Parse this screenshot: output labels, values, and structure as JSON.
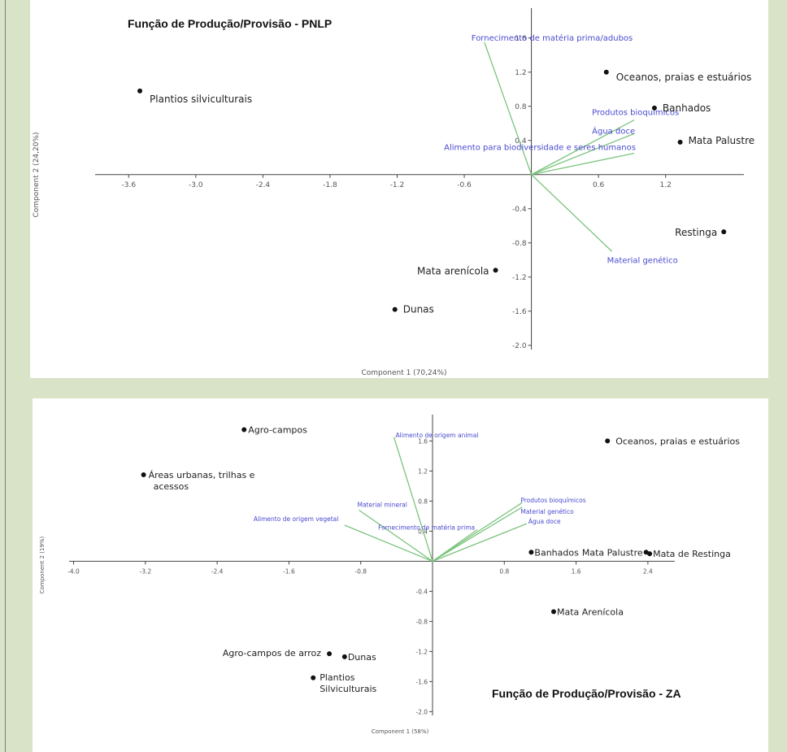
{
  "chart_data": [
    {
      "type": "scatter",
      "title": "Função de Produção/Provisão - PNLP",
      "xlabel": "Component 1 (70,24%)",
      "ylabel": "Component 2 (24,20%)",
      "xlim": [
        -3.9,
        1.9
      ],
      "ylim": [
        -2.05,
        1.95
      ],
      "x_ticks": [
        "-3.6",
        "-3.0",
        "-2.4",
        "-1.8",
        "-1.2",
        "-0.6",
        "0.6",
        "1.2"
      ],
      "x_tick_values": [
        -3.6,
        -3.0,
        -2.4,
        -1.8,
        -1.2,
        -0.6,
        0.6,
        1.2
      ],
      "y_ticks": [
        "1.6",
        "1.2",
        "0.8",
        "0.4",
        "-0.4",
        "-0.8",
        "-1.2",
        "-1.6",
        "-2.0"
      ],
      "y_tick_values": [
        1.6,
        1.2,
        0.8,
        0.4,
        -0.4,
        -0.8,
        -1.2,
        -1.6,
        -2.0
      ],
      "points": [
        {
          "label": "Plantios silviculturais",
          "x": -3.5,
          "y": 0.98
        },
        {
          "label": "Oceanos, praias e estuários",
          "x": 0.67,
          "y": 1.2
        },
        {
          "label": "Banhados",
          "x": 1.1,
          "y": 0.78
        },
        {
          "label": "Mata Palustre",
          "x": 1.33,
          "y": 0.38
        },
        {
          "label": "Restinga",
          "x": 1.72,
          "y": -0.67
        },
        {
          "label": "Mata arenícola",
          "x": -0.32,
          "y": -1.12
        },
        {
          "label": "Dunas",
          "x": -1.22,
          "y": -1.58
        }
      ],
      "vectors": [
        {
          "label": "Fornecimento de matéria prima/adubos",
          "x": -0.42,
          "y": 1.55
        },
        {
          "label": "Produtos bioquímicos",
          "x": 0.92,
          "y": 0.64
        },
        {
          "label": "Água doce",
          "x": 0.92,
          "y": 0.48
        },
        {
          "label": "Alimento para biodiversidade e seres humanos",
          "x": 0.92,
          "y": 0.25
        },
        {
          "label": "Material genético",
          "x": 0.72,
          "y": -0.9
        }
      ]
    },
    {
      "type": "scatter",
      "title": "Função de Produção/Provisão - ZA",
      "xlabel": "Component 1 (58%)",
      "ylabel": "Component 2 (19%)",
      "xlim": [
        -4.05,
        2.7
      ],
      "ylim": [
        -2.05,
        1.95
      ],
      "x_ticks": [
        "-4.0",
        "-3.2",
        "-2.4",
        "-1.6",
        "-0.8",
        "0.8",
        "1.6",
        "2.4"
      ],
      "x_tick_values": [
        -4.0,
        -3.2,
        -2.4,
        -1.6,
        -0.8,
        0.8,
        1.6,
        2.4
      ],
      "y_ticks": [
        "1.6",
        "1.2",
        "0.8",
        "0.4",
        "-0.4",
        "-0.8",
        "-1.2",
        "-1.6",
        "-2.0"
      ],
      "y_tick_values": [
        1.6,
        1.2,
        0.8,
        0.4,
        -0.4,
        -0.8,
        -1.2,
        -1.6,
        -2.0
      ],
      "points": [
        {
          "label": "Agro-campos",
          "x": -2.1,
          "y": 1.75
        },
        {
          "label": "Áreas urbanas, trilhas e acessos",
          "x": -3.22,
          "y": 1.15
        },
        {
          "label": "Oceanos, praias e estuários",
          "x": 1.95,
          "y": 1.6
        },
        {
          "label": "Banhados",
          "x": 1.1,
          "y": 0.12
        },
        {
          "label": "Mata Palustre",
          "x": 2.38,
          "y": 0.12
        },
        {
          "label": "Mata de Restinga",
          "x": 2.42,
          "y": 0.1
        },
        {
          "label": "Mata Arenícola",
          "x": 1.35,
          "y": -0.67
        },
        {
          "label": "Agro-campos de arroz",
          "x": -1.15,
          "y": -1.23
        },
        {
          "label": "Dunas",
          "x": -0.98,
          "y": -1.27
        },
        {
          "label": "Plantios Silviculturais",
          "x": -1.33,
          "y": -1.55
        }
      ],
      "vectors": [
        {
          "label": "Alimento de origem animal",
          "x": -0.43,
          "y": 1.65
        },
        {
          "label": "Produtos bioquímicos",
          "x": 1.0,
          "y": 0.78
        },
        {
          "label": "Material genético",
          "x": 1.0,
          "y": 0.72
        },
        {
          "label": "Água doce",
          "x": 1.05,
          "y": 0.5
        },
        {
          "label": "Material mineral",
          "x": -0.82,
          "y": 0.68
        },
        {
          "label": "Alimento de origem vegetal",
          "x": -0.98,
          "y": 0.48
        },
        {
          "label": "Fornecimento de matéria prima",
          "x": 0.5,
          "y": 0.42
        }
      ]
    }
  ]
}
